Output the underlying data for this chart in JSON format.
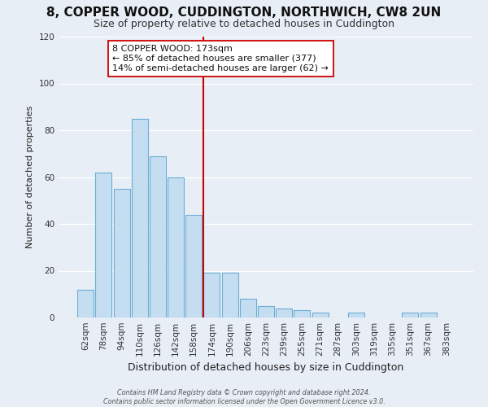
{
  "title": "8, COPPER WOOD, CUDDINGTON, NORTHWICH, CW8 2UN",
  "subtitle": "Size of property relative to detached houses in Cuddington",
  "xlabel": "Distribution of detached houses by size in Cuddington",
  "ylabel": "Number of detached properties",
  "bar_labels": [
    "62sqm",
    "78sqm",
    "94sqm",
    "110sqm",
    "126sqm",
    "142sqm",
    "158sqm",
    "174sqm",
    "190sqm",
    "206sqm",
    "223sqm",
    "239sqm",
    "255sqm",
    "271sqm",
    "287sqm",
    "303sqm",
    "319sqm",
    "335sqm",
    "351sqm",
    "367sqm",
    "383sqm"
  ],
  "bar_values": [
    12,
    62,
    55,
    85,
    69,
    60,
    44,
    19,
    19,
    8,
    5,
    4,
    3,
    2,
    0,
    2,
    0,
    0,
    2,
    2,
    0
  ],
  "bar_color": "#c5ddf0",
  "bar_edge_color": "#6aaed6",
  "vline_color": "#cc0000",
  "annotation_title": "8 COPPER WOOD: 173sqm",
  "annotation_line1": "← 85% of detached houses are smaller (377)",
  "annotation_line2": "14% of semi-detached houses are larger (62) →",
  "annotation_box_color": "#ffffff",
  "annotation_box_edge": "#cc0000",
  "ylim": [
    0,
    120
  ],
  "yticks": [
    0,
    20,
    40,
    60,
    80,
    100,
    120
  ],
  "footer1": "Contains HM Land Registry data © Crown copyright and database right 2024.",
  "footer2": "Contains public sector information licensed under the Open Government Licence v3.0.",
  "bg_color": "#e8eef5",
  "plot_bg_color": "#e8eef5",
  "grid_color": "#ffffff",
  "title_fontsize": 11,
  "subtitle_fontsize": 9,
  "ylabel_fontsize": 8,
  "xlabel_fontsize": 9,
  "tick_fontsize": 7.5,
  "annotation_fontsize": 8,
  "footer_fontsize": 5.8
}
